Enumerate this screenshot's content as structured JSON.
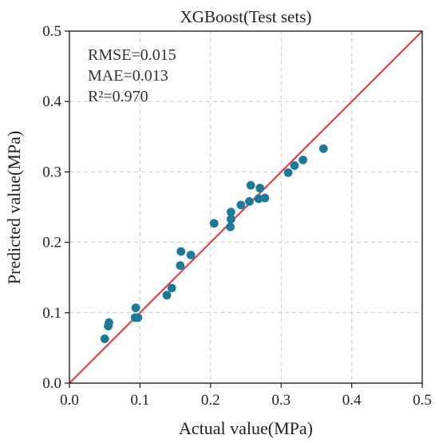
{
  "chart_data": {
    "type": "scatter",
    "title": "XGBoost(Test sets)",
    "xlabel": "Actual value(MPa)",
    "ylabel": "Predicted value(MPa)",
    "xlim": [
      0.0,
      0.5
    ],
    "ylim": [
      0.0,
      0.5
    ],
    "xticks": [
      "0.0",
      "0.1",
      "0.2",
      "0.3",
      "0.4",
      "0.5"
    ],
    "yticks": [
      "0.0",
      "0.1",
      "0.2",
      "0.3",
      "0.4",
      "0.5"
    ],
    "grid": true,
    "reference_line": {
      "from": [
        0.0,
        0.0
      ],
      "to": [
        0.5,
        0.5
      ],
      "color": "#e0424a"
    },
    "metrics": [
      "RMSE=0.015",
      "MAE=0.013",
      "R²=0.970"
    ],
    "point_color": "#1f7896",
    "points": [
      {
        "x": 0.05,
        "y": 0.063
      },
      {
        "x": 0.055,
        "y": 0.081
      },
      {
        "x": 0.056,
        "y": 0.086
      },
      {
        "x": 0.093,
        "y": 0.093
      },
      {
        "x": 0.094,
        "y": 0.107
      },
      {
        "x": 0.097,
        "y": 0.093
      },
      {
        "x": 0.138,
        "y": 0.125
      },
      {
        "x": 0.145,
        "y": 0.135
      },
      {
        "x": 0.157,
        "y": 0.167
      },
      {
        "x": 0.158,
        "y": 0.187
      },
      {
        "x": 0.172,
        "y": 0.182
      },
      {
        "x": 0.205,
        "y": 0.227
      },
      {
        "x": 0.228,
        "y": 0.222
      },
      {
        "x": 0.229,
        "y": 0.233
      },
      {
        "x": 0.229,
        "y": 0.243
      },
      {
        "x": 0.243,
        "y": 0.253
      },
      {
        "x": 0.255,
        "y": 0.258
      },
      {
        "x": 0.257,
        "y": 0.281
      },
      {
        "x": 0.268,
        "y": 0.262
      },
      {
        "x": 0.27,
        "y": 0.277
      },
      {
        "x": 0.277,
        "y": 0.263
      },
      {
        "x": 0.31,
        "y": 0.299
      },
      {
        "x": 0.319,
        "y": 0.309
      },
      {
        "x": 0.331,
        "y": 0.317
      },
      {
        "x": 0.36,
        "y": 0.333
      }
    ]
  }
}
